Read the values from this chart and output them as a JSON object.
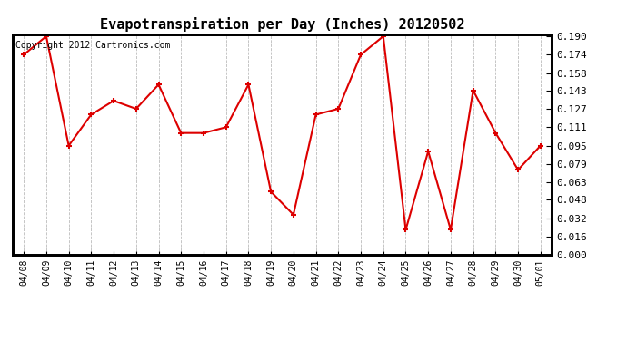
{
  "title": "Evapotranspiration per Day (Inches) 20120502",
  "copyright": "Copyright 2012 Cartronics.com",
  "dates": [
    "04/08",
    "04/09",
    "04/10",
    "04/11",
    "04/12",
    "04/13",
    "04/14",
    "04/15",
    "04/16",
    "04/17",
    "04/18",
    "04/19",
    "04/20",
    "04/21",
    "04/22",
    "04/23",
    "04/24",
    "04/25",
    "04/26",
    "04/27",
    "04/28",
    "04/29",
    "04/30",
    "05/01"
  ],
  "values": [
    0.174,
    0.19,
    0.095,
    0.122,
    0.134,
    0.127,
    0.148,
    0.106,
    0.106,
    0.111,
    0.148,
    0.055,
    0.035,
    0.122,
    0.127,
    0.174,
    0.19,
    0.022,
    0.09,
    0.022,
    0.143,
    0.106,
    0.074,
    0.095
  ],
  "line_color": "#dd0000",
  "marker": "+",
  "marker_size": 5,
  "ylim": [
    0.0,
    0.19
  ],
  "yticks": [
    0.0,
    0.016,
    0.032,
    0.048,
    0.063,
    0.079,
    0.095,
    0.111,
    0.127,
    0.143,
    0.158,
    0.174,
    0.19
  ],
  "bg_color": "#ffffff",
  "grid_color": "#bbbbbb",
  "title_fontsize": 11,
  "copyright_fontsize": 7,
  "tick_fontsize": 8,
  "xtick_fontsize": 7
}
